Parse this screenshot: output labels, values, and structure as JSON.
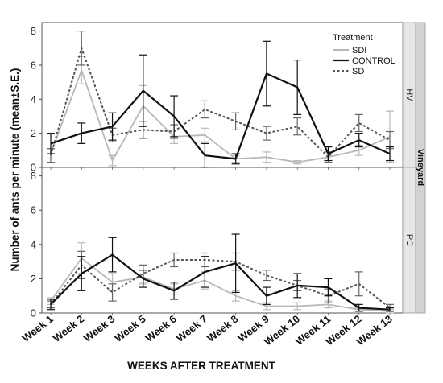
{
  "chart_data": {
    "type": "line",
    "ylabel": "Number of ants per minute  (mean±S.E.)",
    "xlabel": "WEEKS AFTER TREATMENT",
    "categories": [
      "Week 1",
      "Week 2",
      "Week 3",
      "Week 5",
      "Week 6",
      "Week 7",
      "Week 8",
      "Week 9",
      "Week 10",
      "Week 11",
      "Week 12",
      "Week 13"
    ],
    "ylim": [
      0,
      8.5
    ],
    "yticks": [
      0,
      2,
      4,
      6,
      8
    ],
    "grid": false,
    "legend": {
      "title": "Treatment",
      "position": "top-right",
      "entries": [
        {
          "name": "SDI",
          "color": "#b8b8b8",
          "dash": "solid"
        },
        {
          "name": "CONTROL",
          "color": "#111111",
          "dash": "solid"
        },
        {
          "name": "SD",
          "color": "#555555",
          "dash": "dotted"
        }
      ]
    },
    "facet_title": "Vineyard",
    "panels": [
      {
        "label": "HV",
        "series": [
          {
            "name": "SDI",
            "values": [
              0.8,
              5.7,
              0.4,
              3.6,
              1.8,
              1.9,
              0.5,
              0.6,
              0.3,
              0.6,
              1.0,
              1.8
            ],
            "errors": [
              0.3,
              0.8,
              0.3,
              1.2,
              0.4,
              0.4,
              0.2,
              0.3,
              0.1,
              0.3,
              0.3,
              1.5
            ]
          },
          {
            "name": "CONTROL",
            "values": [
              1.4,
              2.0,
              2.4,
              4.5,
              3.0,
              0.7,
              0.5,
              5.5,
              4.7,
              0.8,
              1.6,
              0.8
            ],
            "errors": [
              0.6,
              0.6,
              0.8,
              2.1,
              1.2,
              0.7,
              0.3,
              1.9,
              1.6,
              0.4,
              0.4,
              0.4
            ]
          },
          {
            "name": "SD",
            "values": [
              0.7,
              7.0,
              1.9,
              2.2,
              2.1,
              3.4,
              2.7,
              2.0,
              2.4,
              0.6,
              2.6,
              1.6
            ],
            "errors": [
              0.4,
              1.0,
              0.4,
              0.5,
              0.4,
              0.5,
              0.5,
              0.4,
              0.5,
              0.3,
              0.5,
              0.5
            ]
          }
        ]
      },
      {
        "label": "PC",
        "series": [
          {
            "name": "SDI",
            "values": [
              0.7,
              3.2,
              1.8,
              2.1,
              1.4,
              1.9,
              1.0,
              0.4,
              0.4,
              0.5,
              0.2,
              0.1
            ],
            "errors": [
              0.2,
              0.9,
              0.5,
              0.4,
              0.3,
              0.5,
              0.3,
              0.2,
              0.2,
              0.2,
              0.1,
              0.1
            ]
          },
          {
            "name": "CONTROL",
            "values": [
              0.5,
              2.3,
              3.4,
              2.0,
              1.3,
              2.4,
              2.9,
              1.0,
              1.6,
              1.5,
              0.3,
              0.2
            ],
            "errors": [
              0.3,
              1.0,
              1.0,
              0.5,
              0.5,
              0.9,
              1.7,
              0.5,
              0.7,
              0.5,
              0.2,
              0.1
            ]
          },
          {
            "name": "SD",
            "values": [
              0.5,
              2.8,
              1.2,
              2.3,
              3.1,
              3.1,
              3.0,
              2.2,
              1.6,
              1.0,
              1.7,
              0.3
            ],
            "errors": [
              0.2,
              0.8,
              0.5,
              0.5,
              0.4,
              0.4,
              0.5,
              0.3,
              0.3,
              0.4,
              0.7,
              0.2
            ]
          }
        ]
      }
    ]
  }
}
